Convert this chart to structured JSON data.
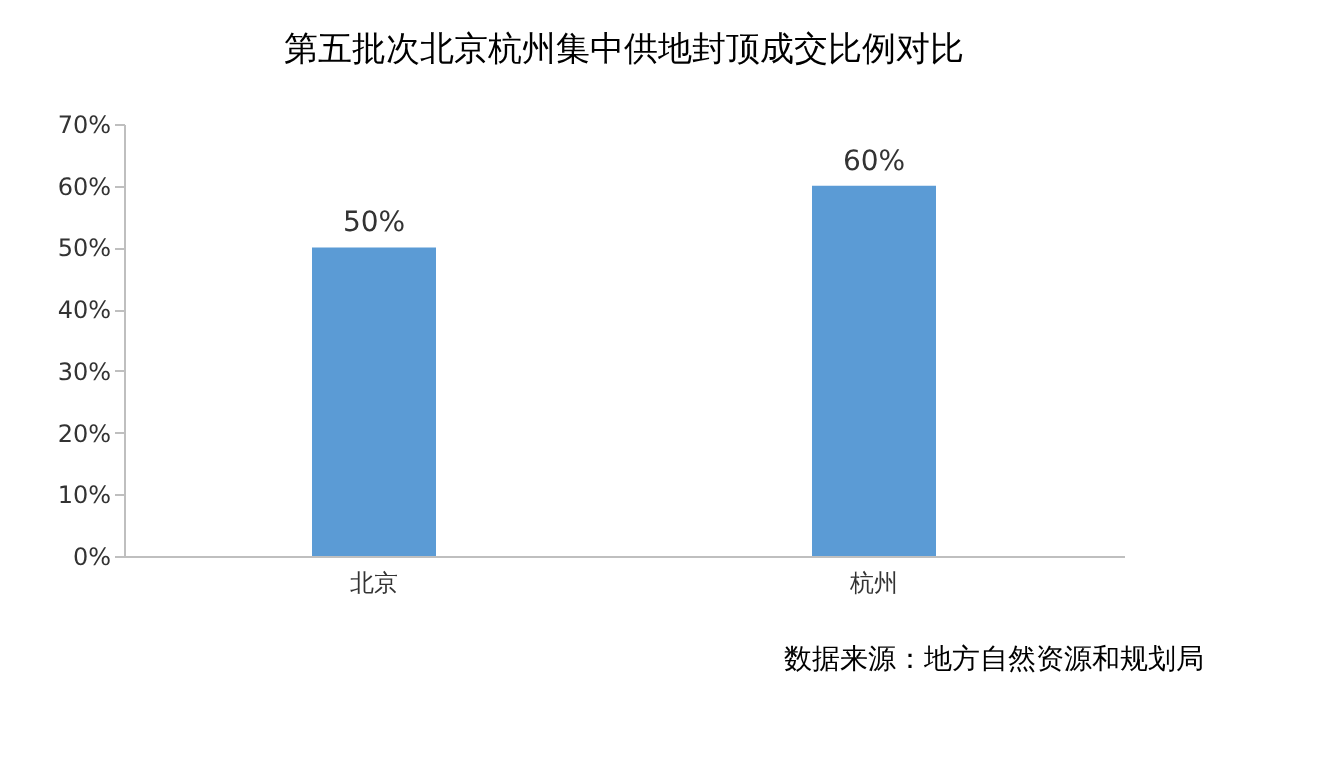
{
  "chart_data": {
    "type": "bar",
    "title": "第五批次北京杭州集中供地封顶成交比例对比",
    "categories": [
      "北京",
      "杭州"
    ],
    "values": [
      50,
      60
    ],
    "color": "#5b9bd5",
    "value_labels": [
      "50%",
      "60%"
    ],
    "ylim": [
      0,
      70
    ],
    "yticks": [
      {
        "value": 0,
        "label": "0%"
      },
      {
        "value": 10,
        "label": "10%"
      },
      {
        "value": 20,
        "label": "20%"
      },
      {
        "value": 30,
        "label": "30%"
      },
      {
        "value": 40,
        "label": "40%"
      },
      {
        "value": 50,
        "label": "50%"
      },
      {
        "value": 60,
        "label": "60%"
      },
      {
        "value": 70,
        "label": "70%"
      }
    ],
    "grid": false,
    "annotations": [
      "数据来源：地方自然资源和规划局"
    ]
  }
}
